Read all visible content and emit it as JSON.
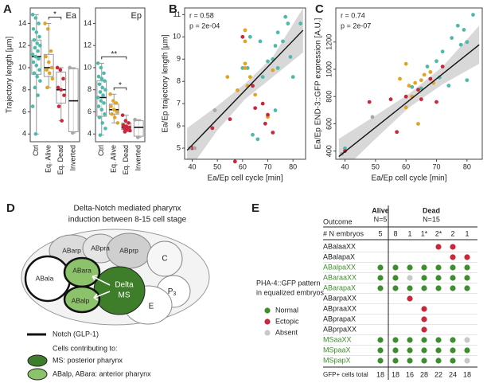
{
  "panel_labels": [
    "A",
    "B",
    "C",
    "D",
    "E"
  ],
  "chart_data": [
    {
      "type": "box",
      "title": "Ea",
      "ylabel": "Trajectory length [µm]",
      "categories": [
        "Ctrl",
        "Eq. Alive",
        "Eq. Dead",
        "Inverted"
      ],
      "colors": [
        "#4fb9aa",
        "#e0a526",
        "#c8283c",
        "#a8a8a8"
      ],
      "boxes": [
        {
          "whisker_low": 4.0,
          "q1": 9.4,
          "median": 11.0,
          "q3": 12.5,
          "whisker_high": 14.8
        },
        {
          "whisker_low": 8.2,
          "q1": 9.2,
          "median": 10.0,
          "q3": 11.2,
          "whisker_high": 14.0
        },
        {
          "whisker_low": 5.2,
          "q1": 6.8,
          "median": 8.0,
          "q3": 9.6,
          "whisker_high": 10.0
        },
        {
          "whisker_low": 4.1,
          "q1": 4.2,
          "median": 7.0,
          "q3": 9.9,
          "whisker_high": 10.0
        }
      ],
      "points": [
        [
          14.8,
          14.5,
          14,
          13.5,
          13.2,
          12.8,
          12.5,
          12.2,
          12,
          11.8,
          11.5,
          11.2,
          11,
          10.8,
          10.5,
          10.2,
          9.8,
          9.5,
          9.2,
          8.8,
          8.2,
          7.5,
          6.5,
          4.0
        ],
        [
          14,
          13.5,
          11.5,
          11,
          10.5,
          10,
          9.8,
          9.5,
          9,
          8.2
        ],
        [
          10,
          9.8,
          9,
          8.2,
          8,
          7.5,
          6.5,
          5.2
        ],
        [
          10,
          4.1
        ]
      ],
      "annotations": [
        {
          "text": "*",
          "between": [
            "Eq. Alive",
            "Eq. Dead"
          ]
        }
      ],
      "ylim": [
        3.3,
        15.4
      ],
      "yticks": [
        4,
        6,
        8,
        10,
        12,
        14
      ]
    },
    {
      "type": "box",
      "title": "Ep",
      "categories": [
        "Ctrl",
        "Eq. Alive",
        "Eq. Dead",
        "Inverted"
      ],
      "colors": [
        "#4fb9aa",
        "#e0a526",
        "#c8283c",
        "#a8a8a8"
      ],
      "boxes": [
        {
          "whisker_low": 3.9,
          "q1": 5.6,
          "median": 7.3,
          "q3": 8.8,
          "whisker_high": 10.4
        },
        {
          "whisker_low": 5.0,
          "q1": 5.8,
          "median": 6.2,
          "q3": 6.7,
          "whisker_high": 7.6
        },
        {
          "whisker_low": 4.2,
          "q1": 4.4,
          "median": 4.6,
          "q3": 5.0,
          "whisker_high": 5.7
        },
        {
          "whisker_low": 3.7,
          "q1": 3.8,
          "median": 4.6,
          "q3": 5.2,
          "whisker_high": 5.3
        }
      ],
      "points": [
        [
          10.4,
          10,
          9.5,
          9.2,
          9,
          8.8,
          8.5,
          8.2,
          8,
          7.8,
          7.5,
          7.3,
          7,
          6.8,
          6.5,
          6.2,
          5.8,
          5.5,
          5,
          4.5,
          3.9
        ],
        [
          7.6,
          7,
          6.8,
          6.5,
          6.2,
          6,
          5.8,
          5.5,
          5
        ],
        [
          5.7,
          5.2,
          5,
          4.8,
          4.7,
          4.6,
          4.5,
          4.4,
          4.3,
          4.2
        ],
        [
          5.3,
          3.7
        ]
      ],
      "annotations": [
        {
          "text": "**",
          "between": [
            "Ctrl",
            "Eq. Dead"
          ]
        },
        {
          "text": "*",
          "between": [
            "Eq. Alive",
            "Eq. Dead"
          ]
        }
      ],
      "ylim": [
        3.3,
        15.4
      ],
      "yticks": [
        4,
        6,
        8,
        10,
        12,
        14
      ]
    },
    {
      "type": "scatter",
      "xlabel": "Ea/Ep cell cycle [min]",
      "ylabel": "Ea/Ep trajectory length [µm]",
      "stats": [
        "r = 0.58",
        "p = 2e-04"
      ],
      "series": [
        {
          "color": "#4fb9aa",
          "x": [
            40,
            60,
            62,
            63,
            67,
            68,
            70,
            72,
            73,
            74,
            76,
            77,
            78,
            79,
            80,
            83,
            64,
            66,
            73,
            74
          ],
          "y": [
            5.0,
            8.6,
            8.6,
            10,
            9.8,
            8.2,
            8.9,
            9.0,
            9.6,
            10.2,
            9.8,
            10.9,
            10.6,
            9.1,
            8.2,
            10.6,
            5.6,
            5.4,
            6.7,
            8.6
          ]
        },
        {
          "color": "#e0a526",
          "x": [
            54,
            58,
            61,
            61,
            61,
            61,
            62,
            63,
            65,
            70,
            72
          ],
          "y": [
            8.2,
            7.6,
            10.3,
            9.8,
            8.8,
            8.6,
            7.8,
            8.2,
            7.4,
            6.4,
            8.5
          ]
        },
        {
          "color": "#c8283c",
          "x": [
            40,
            48,
            55,
            57,
            60,
            64,
            65,
            69,
            70,
            72,
            68
          ],
          "y": [
            5.0,
            5.9,
            6.3,
            4.4,
            10,
            7.8,
            6.8,
            6.1,
            6.5,
            5.7,
            7.0
          ]
        },
        {
          "color": "#a8a8a8",
          "x": [
            39,
            49,
            41
          ],
          "y": [
            5.0,
            6.7,
            5.0
          ]
        }
      ],
      "fit": {
        "x": [
          38,
          84
        ],
        "y": [
          4.9,
          10.3
        ]
      },
      "band": {
        "x": [
          38,
          50,
          61,
          72,
          84
        ],
        "lower": [
          3.9,
          5.8,
          7.2,
          8.2,
          9.3
        ],
        "upper": [
          5.9,
          6.9,
          7.9,
          9.1,
          11.3
        ]
      },
      "xlim": [
        37,
        85
      ],
      "xticks": [
        40,
        50,
        60,
        70,
        80
      ],
      "ylim": [
        4.5,
        11.3
      ],
      "yticks": [
        5,
        6,
        7,
        8,
        9,
        10,
        11
      ]
    },
    {
      "type": "scatter",
      "xlabel": "Ea/Ep cell cycle [min]",
      "ylabel": "Ea/Ep END-3::GFP expression [A.U.]",
      "stats": [
        "r = 0.74",
        "p = 2e-07"
      ],
      "series": [
        {
          "color": "#4fb9aa",
          "x": [
            40,
            62,
            67,
            70,
            72,
            75,
            77,
            78,
            79,
            80,
            82,
            80,
            65,
            74,
            71
          ],
          "y": [
            420,
            870,
            1020,
            1060,
            1130,
            1230,
            1320,
            1180,
            1290,
            1200,
            1400,
            920,
            860,
            880,
            940
          ]
        },
        {
          "color": "#e0a526",
          "x": [
            58,
            60,
            61,
            62,
            63,
            64,
            65,
            66,
            68,
            60,
            69
          ],
          "y": [
            930,
            1040,
            880,
            800,
            900,
            600,
            920,
            960,
            980,
            720,
            900
          ]
        },
        {
          "color": "#c8283c",
          "x": [
            40,
            48,
            55,
            57,
            60,
            64,
            65,
            68,
            70,
            72
          ],
          "y": [
            400,
            760,
            780,
            540,
            800,
            850,
            780,
            930,
            760,
            1020
          ]
        },
        {
          "color": "#a8a8a8",
          "x": [
            39,
            49
          ],
          "y": [
            380,
            650
          ]
        }
      ],
      "fit": {
        "x": [
          38,
          84
        ],
        "y": [
          360,
          1180
        ]
      },
      "band": {
        "x": [
          38,
          50,
          61,
          72,
          84
        ],
        "lower": [
          230,
          490,
          720,
          890,
          1040
        ],
        "upper": [
          490,
          660,
          820,
          1020,
          1320
        ]
      },
      "xlim": [
        37,
        85
      ],
      "xticks": [
        40,
        50,
        60,
        70,
        80
      ],
      "ylim": [
        340,
        1450
      ],
      "yticks": [
        400,
        600,
        800,
        1000,
        1200
      ]
    }
  ],
  "diagram": {
    "title": [
      "Delta-Notch mediated pharynx",
      "induction between 8-15 cell stage"
    ],
    "cells": {
      "ABarp": "ABarp",
      "ABpra": "ABpra",
      "ABprp": "ABprp",
      "C": "C",
      "P": "P",
      "P_sub": "3",
      "E": "E",
      "ABala": "ABala",
      "ABara": "ABara",
      "ABalp": "ABalp",
      "Delta": "Delta",
      "MS": "MS"
    },
    "notch_label": "Notch (GLP-1)",
    "cells_heading": "Cells contributing to:",
    "ms_legend": "MS: posterior pharynx",
    "ab_legend": "ABalp, ABara: anterior pharynx"
  },
  "table": {
    "legend_title": [
      "PHA-4::GFP pattern",
      "in equalized embryos"
    ],
    "legend": [
      {
        "name": "Normal",
        "color": "#3e8e2f"
      },
      {
        "name": "Ectopic",
        "color": "#c8283c"
      },
      {
        "name": "Absent",
        "color": "#c8c8c8"
      }
    ],
    "outcome_label": "Outcome",
    "alive": "Alive",
    "alive_n": "N=5",
    "dead": "Dead",
    "dead_n": "N=15",
    "n_label": "# N embryos",
    "n_embryos": [
      "5",
      "8",
      "1",
      "1*",
      "2*",
      "2",
      "1"
    ],
    "rows": [
      {
        "name": "ABalaaXX",
        "color": "#222222",
        "cells": [
          null,
          null,
          null,
          null,
          "Ectopic",
          "Ectopic",
          null
        ]
      },
      {
        "name": "ABalapaX",
        "color": "#222222",
        "cells": [
          null,
          null,
          null,
          null,
          null,
          "Ectopic",
          "Ectopic"
        ]
      },
      {
        "name": "ABalpaXX",
        "color": "#3e8e2f",
        "cells": [
          "Normal",
          "Normal",
          "Normal",
          "Normal",
          "Normal",
          "Normal",
          "Normal"
        ]
      },
      {
        "name": "ABaraaXX",
        "color": "#3e8e2f",
        "cells": [
          "Normal",
          "Normal",
          "Absent",
          "Normal",
          "Normal",
          "Normal",
          "Normal"
        ]
      },
      {
        "name": "ABarapaX",
        "color": "#3e8e2f",
        "cells": [
          "Normal",
          "Normal",
          "Normal",
          "Normal",
          "Normal",
          "Normal",
          "Normal"
        ]
      },
      {
        "name": "ABarpaXX",
        "color": "#222222",
        "cells": [
          null,
          null,
          "Ectopic",
          null,
          null,
          null,
          null
        ]
      },
      {
        "name": "ABpraaXX",
        "color": "#222222",
        "cells": [
          null,
          null,
          null,
          "Ectopic",
          null,
          null,
          null
        ]
      },
      {
        "name": "ABprapaX",
        "color": "#222222",
        "cells": [
          null,
          null,
          null,
          "Ectopic",
          null,
          null,
          null
        ]
      },
      {
        "name": "ABprpaXX",
        "color": "#222222",
        "cells": [
          null,
          null,
          null,
          "Ectopic",
          null,
          null,
          null
        ]
      },
      {
        "name": "MSaaXX",
        "color": "#3e8e2f",
        "cells": [
          "Normal",
          "Normal",
          "Normal",
          "Normal",
          "Normal",
          "Normal",
          "Absent"
        ]
      },
      {
        "name": "MSpaaX",
        "color": "#3e8e2f",
        "cells": [
          "Normal",
          "Normal",
          "Normal",
          "Normal",
          "Normal",
          "Normal",
          "Normal"
        ]
      },
      {
        "name": "MSpapX",
        "color": "#3e8e2f",
        "cells": [
          "Normal",
          "Normal",
          "Normal",
          "Normal",
          "Normal",
          "Normal",
          "Absent"
        ]
      }
    ],
    "total_label": "GFP+ cells total",
    "totals": [
      18,
      18,
      16,
      28,
      22,
      24,
      18
    ]
  }
}
